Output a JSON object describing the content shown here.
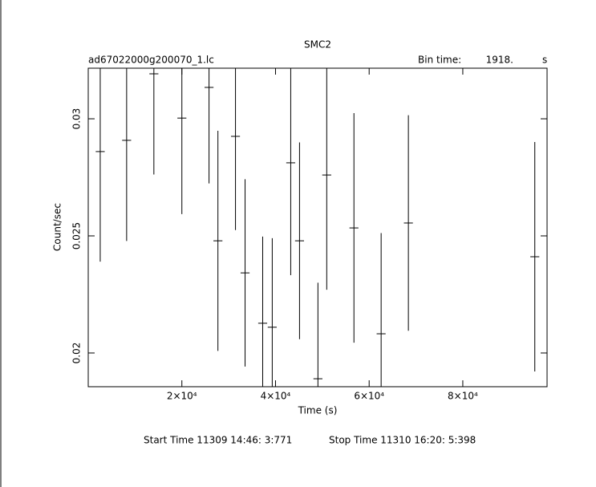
{
  "chart_data": {
    "type": "errorbar",
    "title": "SMC2",
    "file_label": "ad67022000g200070_1.lc",
    "bin_time_label": "Bin time:",
    "bin_time": {
      "value": 1918,
      "label": "1918."
    },
    "bin_time_unit": "s",
    "xlabel": "Time (s)",
    "ylabel": "Count/sec",
    "start_time": "Start Time 11309 14:46: 3:771",
    "stop_time": "Stop Time 11310 16:20: 5:398",
    "xlim": [
      0,
      98000
    ],
    "ylim": [
      0.01856,
      0.03216
    ],
    "xticks": [
      {
        "value": 20000,
        "label": "2×10⁴"
      },
      {
        "value": 40000,
        "label": "4×10⁴"
      },
      {
        "value": 60000,
        "label": "6×10⁴"
      },
      {
        "value": 80000,
        "label": "8×10⁴"
      }
    ],
    "yticks": [
      0.02,
      0.025,
      0.03
    ],
    "color": "#000000",
    "x": [
      2560,
      8200,
      14020,
      20000,
      25800,
      27700,
      31450,
      33500,
      37260,
      39300,
      43250,
      45130,
      49060,
      50940,
      56750,
      62560,
      68380,
      95380
    ],
    "values": [
      0.0286,
      0.02908,
      0.03192,
      0.03003,
      0.03134,
      0.02479,
      0.02925,
      0.02342,
      0.02127,
      0.0211,
      0.02812,
      0.02479,
      0.0189,
      0.0276,
      0.02534,
      0.02082,
      0.02555,
      0.02411
    ],
    "errors": [
      0.0047,
      0.0043,
      0.0043,
      0.0041,
      0.0041,
      0.0047,
      0.004,
      0.004,
      0.0037,
      0.0038,
      0.0048,
      0.0042,
      0.0041,
      0.0049,
      0.0049,
      0.0043,
      0.0046,
      0.0049
    ]
  }
}
